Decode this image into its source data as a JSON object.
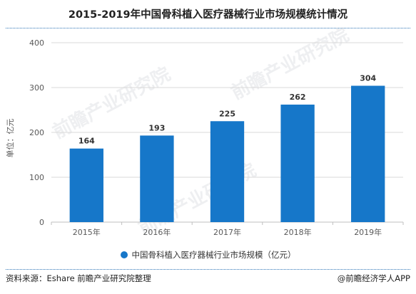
{
  "colors": {
    "bar": "#1677c9",
    "grid": "#d9d9d9",
    "axis": "#bfbfbf",
    "rule": "#2e75b6"
  },
  "watermark": [
    "前瞻产业研究院",
    "前瞻产业研究院",
    "前瞻产业研究院"
  ],
  "footer": {
    "source": "资料来源：Eshare 前瞻产业研究院整理",
    "credit": "@前瞻经济学人APP"
  },
  "chart_data": {
    "type": "bar",
    "title": "2015-2019年中国骨科植入医疗器械行业市场规模统计情况",
    "categories": [
      "2015年",
      "2016年",
      "2017年",
      "2018年",
      "2019年"
    ],
    "series": [
      {
        "name": "中国骨科植入医疗器械行业市场规模（亿元）",
        "values": [
          164,
          193,
          225,
          262,
          304
        ]
      }
    ],
    "ylabel": "单位：亿元",
    "ylim": [
      0,
      400
    ],
    "yticks": [
      0,
      100,
      200,
      300,
      400
    ],
    "grid": true,
    "legend": "bottom",
    "data_labels": true
  }
}
